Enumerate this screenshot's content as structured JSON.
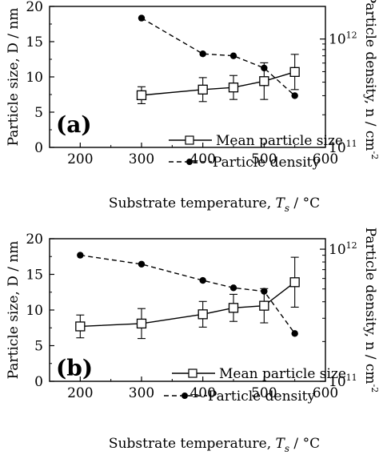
{
  "chart_data": [
    {
      "panel_label": "(a)",
      "type": "line",
      "x_label_text": "Substrate temperature, ",
      "x_label_symbol": "T",
      "x_label_sub": "s",
      "x_label_unit": " / °C",
      "y_label_left": "Particle size, D / nm",
      "y_label_right": "Particle density, n / cm",
      "y_label_right_sup": "-2",
      "xlim": [
        150,
        600
      ],
      "x_ticks": [
        "200",
        "300",
        "400",
        "500",
        "600"
      ],
      "ylim": [
        0,
        20
      ],
      "y_ticks": [
        "0",
        "5",
        "10",
        "15",
        "20"
      ],
      "y2_log_range": [
        100000000000.0,
        2000000000000.0
      ],
      "y2_ticks": [
        {
          "mantissa": "10",
          "exp": "11",
          "value": 100000000000.0
        },
        {
          "mantissa": "10",
          "exp": "12",
          "value": 1000000000000.0
        }
      ],
      "legend_position": "bottom-right",
      "series": [
        {
          "name": "Mean particle size",
          "axis": "left",
          "marker": "open-square",
          "line": "solid",
          "x": [
            300,
            400,
            450,
            500,
            550
          ],
          "values": [
            7.4,
            8.2,
            8.5,
            9.4,
            10.7
          ],
          "error": [
            1.2,
            1.7,
            1.7,
            2.6,
            2.5
          ]
        },
        {
          "name": "Particle density",
          "axis": "right",
          "marker": "filled-circle",
          "line": "dashed",
          "x": [
            300,
            400,
            450,
            500,
            550
          ],
          "values": [
            1560000000000.0,
            730000000000.0,
            700000000000.0,
            540000000000.0,
            300000000000.0
          ]
        }
      ]
    },
    {
      "panel_label": "(b)",
      "type": "line",
      "x_label_text": "Substrate temperature, ",
      "x_label_symbol": "T",
      "x_label_sub": "s",
      "x_label_unit": " / °C",
      "y_label_left": "Particle size, D / nm",
      "y_label_right": "Particle density, n / cm",
      "y_label_right_sup": "-2",
      "xlim": [
        150,
        600
      ],
      "x_ticks": [
        "200",
        "300",
        "400",
        "500",
        "600"
      ],
      "ylim": [
        0,
        20
      ],
      "y_ticks": [
        "0",
        "5",
        "10",
        "15",
        "20"
      ],
      "y2_log_range": [
        100000000000.0,
        1200000000000.0
      ],
      "y2_ticks": [
        {
          "mantissa": "10",
          "exp": "11",
          "value": 100000000000.0
        },
        {
          "mantissa": "10",
          "exp": "12",
          "value": 1000000000000.0
        }
      ],
      "legend_position": "bottom-right",
      "series": [
        {
          "name": "Mean particle size",
          "axis": "left",
          "marker": "open-square",
          "line": "solid",
          "x": [
            200,
            300,
            400,
            450,
            500,
            550
          ],
          "values": [
            7.7,
            8.1,
            9.4,
            10.3,
            10.6,
            13.9
          ],
          "error": [
            1.6,
            2.1,
            1.8,
            1.9,
            2.4,
            3.5
          ]
        },
        {
          "name": "Particle density",
          "axis": "right",
          "marker": "filled-circle",
          "line": "dashed",
          "x": [
            200,
            300,
            400,
            450,
            500,
            550
          ],
          "values": [
            900000000000.0,
            770000000000.0,
            580000000000.0,
            510000000000.0,
            480000000000.0,
            230000000000.0
          ]
        }
      ]
    }
  ]
}
